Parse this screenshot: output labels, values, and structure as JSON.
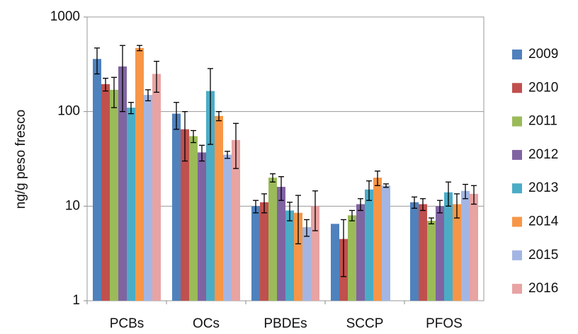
{
  "chart_data": {
    "type": "bar",
    "y_label": "ng/g peso fresco",
    "log_scale": true,
    "grid": true,
    "categories": [
      "PCBs",
      "OCs",
      "PBDEs",
      "SCCP",
      "PFOS"
    ],
    "ylim": [
      1,
      1000
    ],
    "yticks": [
      1,
      10,
      100,
      1000
    ],
    "series": [
      {
        "name": "2009",
        "color": "#4f81bd",
        "values": [
          360,
          95,
          10,
          6.5,
          11
        ],
        "errors": [
          110,
          30,
          1.5,
          null,
          1.5
        ]
      },
      {
        "name": "2010",
        "color": "#c0504d",
        "values": [
          195,
          65,
          11,
          4.5,
          10.5
        ],
        "errors": [
          30,
          35,
          2.5,
          2.7,
          1.5
        ]
      },
      {
        "name": "2011",
        "color": "#9bbb59",
        "values": [
          170,
          55,
          20,
          8,
          7
        ],
        "errors": [
          60,
          8,
          2,
          1,
          0.5
        ]
      },
      {
        "name": "2012",
        "color": "#8064a2",
        "values": [
          300,
          37,
          16,
          10.5,
          10
        ],
        "errors": [
          200,
          7,
          4.5,
          1.5,
          1.5
        ]
      },
      {
        "name": "2013",
        "color": "#4bacc6",
        "values": [
          110,
          165,
          9,
          15,
          14
        ],
        "errors": [
          15,
          120,
          2,
          3.5,
          4
        ]
      },
      {
        "name": "2014",
        "color": "#f79646",
        "values": [
          470,
          90,
          8.5,
          20,
          10.5
        ],
        "errors": [
          30,
          10,
          4.5,
          3.5,
          3
        ]
      },
      {
        "name": "2015",
        "color": "#a3b6e3",
        "values": [
          150,
          35,
          6,
          16.5,
          14.5
        ],
        "errors": [
          20,
          3,
          1.2,
          0.7,
          2.5
        ]
      },
      {
        "name": "2016",
        "color": "#e8a3a3",
        "values": [
          250,
          50,
          10,
          null,
          13.5
        ],
        "errors": [
          90,
          25,
          4.5,
          null,
          3
        ]
      }
    ]
  }
}
